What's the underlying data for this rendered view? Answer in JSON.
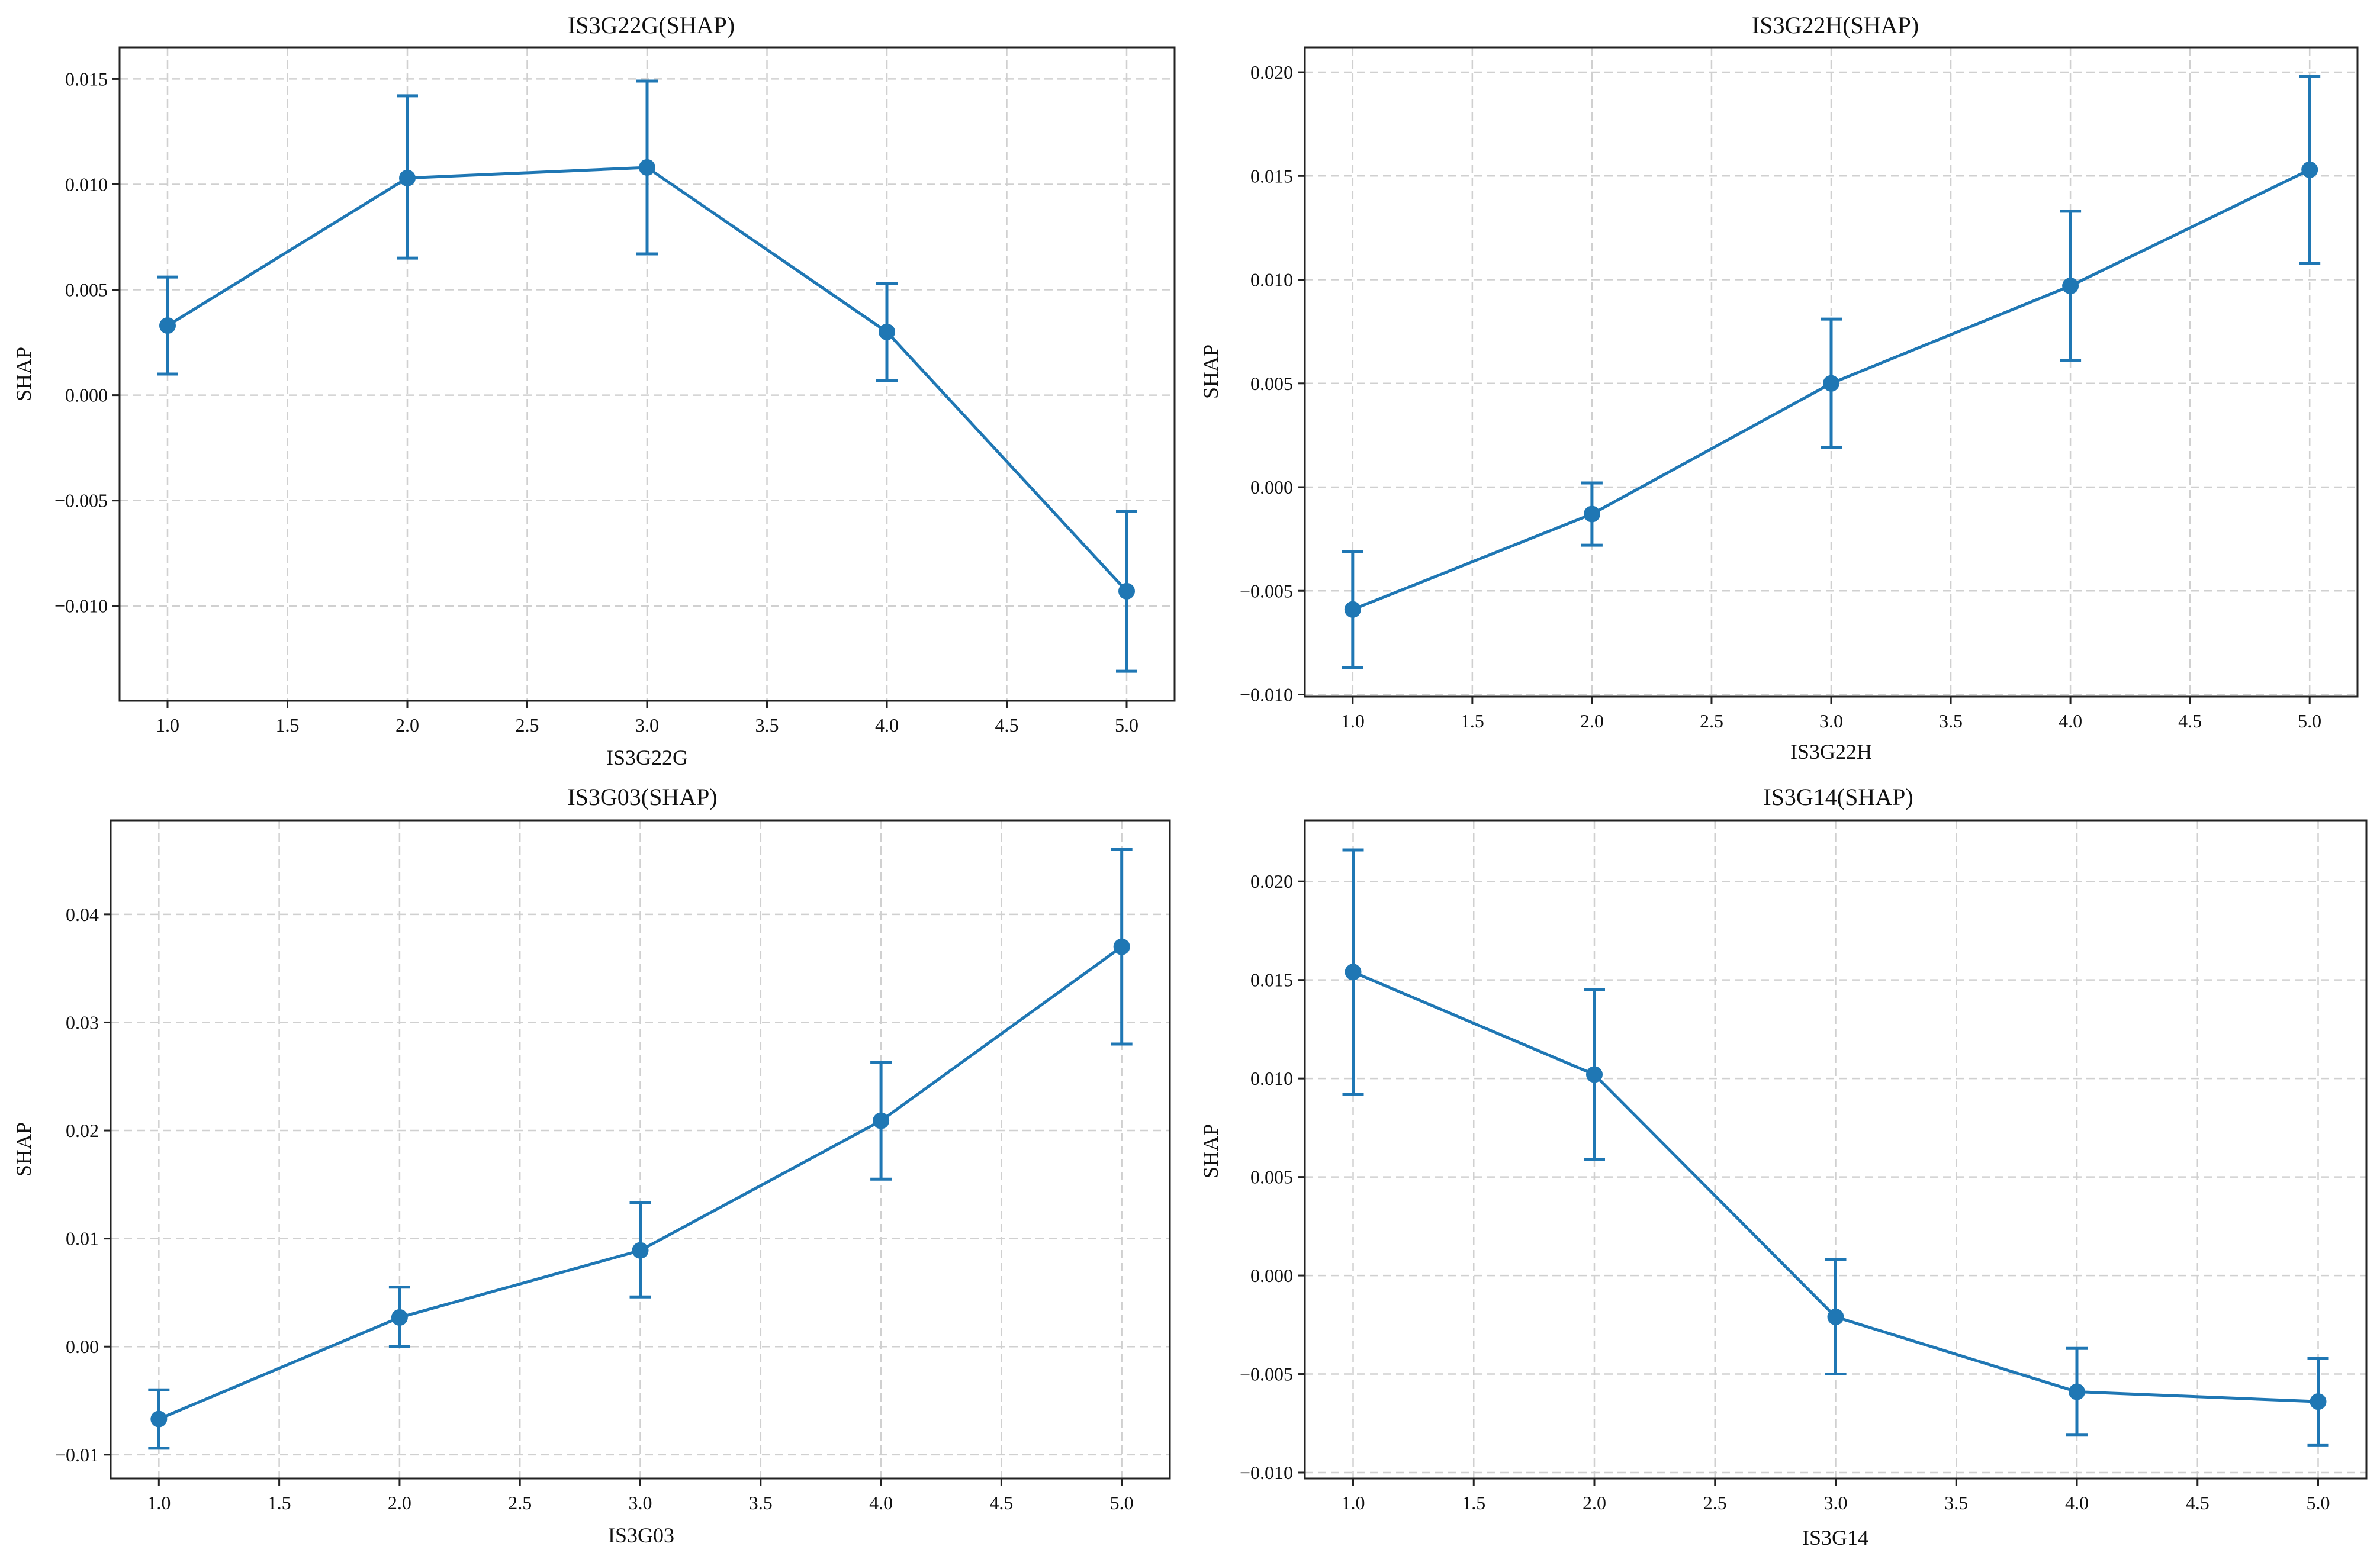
{
  "colors": {
    "series": "#1f77b4",
    "grid": "#d0d0d0",
    "axis": "#222222",
    "background": "#ffffff"
  },
  "chart_data": [
    {
      "type": "line",
      "error_bars": true,
      "grid": true,
      "title": "IS3G22G(SHAP)",
      "xlabel": "IS3G22G",
      "ylabel": "SHAP",
      "xlim": [
        0.8,
        5.2
      ],
      "ylim": [
        -0.0145,
        0.0165
      ],
      "x_ticks": [
        1.0,
        1.5,
        2.0,
        2.5,
        3.0,
        3.5,
        4.0,
        4.5,
        5.0
      ],
      "x_tick_labels": [
        "1.0",
        "1.5",
        "2.0",
        "2.5",
        "3.0",
        "3.5",
        "4.0",
        "4.5",
        "5.0"
      ],
      "y_ticks": [
        -0.01,
        -0.005,
        0.0,
        0.005,
        0.01,
        0.015
      ],
      "y_tick_labels": [
        "−0.010",
        "−0.005",
        "0.000",
        "0.005",
        "0.010",
        "0.015"
      ],
      "x": [
        1.0,
        2.0,
        3.0,
        4.0,
        5.0
      ],
      "values": [
        0.0033,
        0.0103,
        0.0108,
        0.003,
        -0.0093
      ],
      "error_low": [
        0.001,
        0.0065,
        0.0067,
        0.0007,
        -0.0131
      ],
      "error_high": [
        0.0056,
        0.0142,
        0.0149,
        0.0053,
        -0.0055
      ]
    },
    {
      "type": "line",
      "error_bars": true,
      "grid": true,
      "title": "IS3G22H(SHAP)",
      "xlabel": "IS3G22H",
      "ylabel": "SHAP",
      "xlim": [
        0.8,
        5.2
      ],
      "ylim": [
        -0.0101,
        0.0212
      ],
      "x_ticks": [
        1.0,
        1.5,
        2.0,
        2.5,
        3.0,
        3.5,
        4.0,
        4.5,
        5.0
      ],
      "x_tick_labels": [
        "1.0",
        "1.5",
        "2.0",
        "2.5",
        "3.0",
        "3.5",
        "4.0",
        "4.5",
        "5.0"
      ],
      "y_ticks": [
        -0.01,
        -0.005,
        0.0,
        0.005,
        0.01,
        0.015,
        0.02
      ],
      "y_tick_labels": [
        "−0.010",
        "−0.005",
        "0.000",
        "0.005",
        "0.010",
        "0.015",
        "0.020"
      ],
      "x": [
        1.0,
        2.0,
        3.0,
        4.0,
        5.0
      ],
      "values": [
        -0.0059,
        -0.0013,
        0.005,
        0.0097,
        0.0153
      ],
      "error_low": [
        -0.0087,
        -0.0028,
        0.0019,
        0.0061,
        0.0108
      ],
      "error_high": [
        -0.0031,
        0.0002,
        0.0081,
        0.0133,
        0.0198
      ]
    },
    {
      "type": "line",
      "error_bars": true,
      "grid": true,
      "title": "IS3G03(SHAP)",
      "xlabel": "IS3G03",
      "ylabel": "SHAP",
      "xlim": [
        0.8,
        5.2
      ],
      "ylim": [
        -0.0122,
        0.0487
      ],
      "x_ticks": [
        1.0,
        1.5,
        2.0,
        2.5,
        3.0,
        3.5,
        4.0,
        4.5,
        5.0
      ],
      "x_tick_labels": [
        "1.0",
        "1.5",
        "2.0",
        "2.5",
        "3.0",
        "3.5",
        "4.0",
        "4.5",
        "5.0"
      ],
      "y_ticks": [
        -0.01,
        0.0,
        0.01,
        0.02,
        0.03,
        0.04
      ],
      "y_tick_labels": [
        "−0.01",
        "0.00",
        "0.01",
        "0.02",
        "0.03",
        "0.04"
      ],
      "x": [
        1.0,
        2.0,
        3.0,
        4.0,
        5.0
      ],
      "values": [
        -0.0067,
        0.0027,
        0.0089,
        0.0209,
        0.037
      ],
      "error_low": [
        -0.0094,
        0.0,
        0.0046,
        0.0155,
        0.028
      ],
      "error_high": [
        -0.004,
        0.0055,
        0.0133,
        0.0263,
        0.046
      ]
    },
    {
      "type": "line",
      "error_bars": true,
      "grid": true,
      "title": "IS3G14(SHAP)",
      "xlabel": "IS3G14",
      "ylabel": "SHAP",
      "xlim": [
        0.8,
        5.2
      ],
      "ylim": [
        -0.0103,
        0.0231
      ],
      "x_ticks": [
        1.0,
        1.5,
        2.0,
        2.5,
        3.0,
        3.5,
        4.0,
        4.5,
        5.0
      ],
      "x_tick_labels": [
        "1.0",
        "1.5",
        "2.0",
        "2.5",
        "3.0",
        "3.5",
        "4.0",
        "4.5",
        "5.0"
      ],
      "y_ticks": [
        -0.01,
        -0.005,
        0.0,
        0.005,
        0.01,
        0.015,
        0.02
      ],
      "y_tick_labels": [
        "−0.010",
        "−0.005",
        "0.000",
        "0.005",
        "0.010",
        "0.015",
        "0.020"
      ],
      "x": [
        1.0,
        2.0,
        3.0,
        4.0,
        5.0
      ],
      "values": [
        0.0154,
        0.0102,
        -0.0021,
        -0.0059,
        -0.0064
      ],
      "error_low": [
        0.0092,
        0.0059,
        -0.005,
        -0.0081,
        -0.0086
      ],
      "error_high": [
        0.0216,
        0.0145,
        0.0008,
        -0.0037,
        -0.0042
      ]
    }
  ]
}
